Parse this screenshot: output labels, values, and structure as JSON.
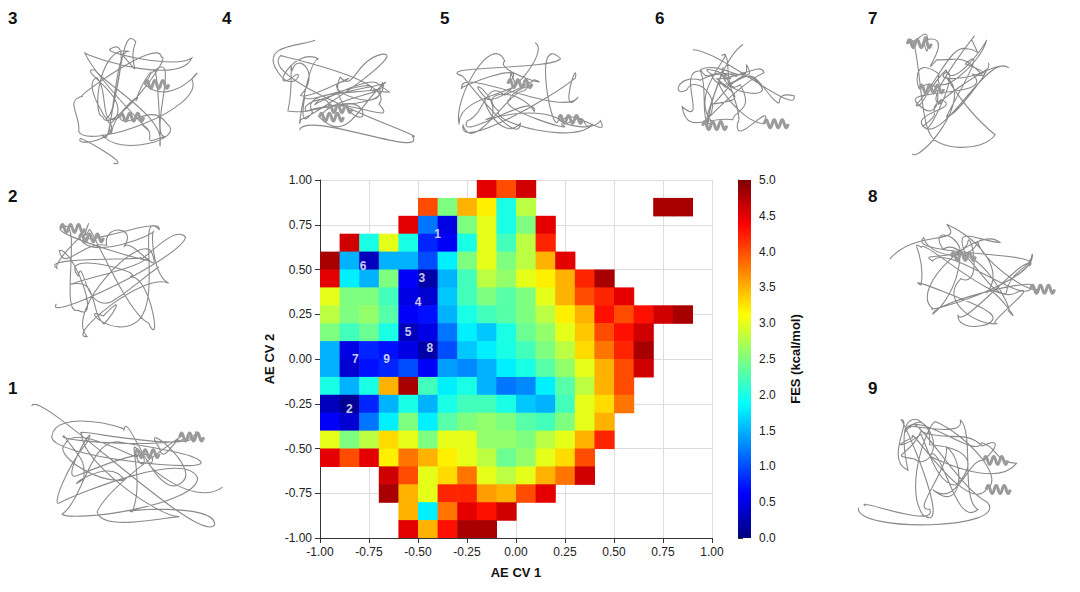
{
  "chart_data": {
    "type": "heatmap",
    "xlabel": "AE CV 1",
    "ylabel": "AE CV 2",
    "xlim": [
      -1,
      1
    ],
    "ylim": [
      -1,
      1
    ],
    "xticks": [
      {
        "value": -1,
        "label": "-1.00"
      },
      {
        "value": -0.75,
        "label": "-0.75"
      },
      {
        "value": -0.5,
        "label": "-0.50"
      },
      {
        "value": -0.25,
        "label": "-0.25"
      },
      {
        "value": 0,
        "label": "0.00"
      },
      {
        "value": 0.25,
        "label": "0.25"
      },
      {
        "value": 0.5,
        "label": "0.50"
      },
      {
        "value": 0.75,
        "label": "0.75"
      },
      {
        "value": 1,
        "label": "1.00"
      }
    ],
    "yticks": [
      {
        "value": -1,
        "label": "-1.00"
      },
      {
        "value": -0.75,
        "label": "-0.75"
      },
      {
        "value": -0.5,
        "label": "-0.50"
      },
      {
        "value": -0.25,
        "label": "-0.25"
      },
      {
        "value": 0,
        "label": "0.00"
      },
      {
        "value": 0.25,
        "label": "0.25"
      },
      {
        "value": 0.5,
        "label": "0.50"
      },
      {
        "value": 0.75,
        "label": "0.75"
      },
      {
        "value": 1,
        "label": "1.00"
      }
    ],
    "grid": true,
    "x": [
      -0.95,
      -0.85,
      -0.75,
      -0.65,
      -0.55,
      -0.45,
      -0.35,
      -0.25,
      -0.15,
      -0.05,
      0.05,
      0.15,
      0.25,
      0.35,
      0.45,
      0.55,
      0.65,
      0.75,
      0.85,
      0.95
    ],
    "y": [
      0.95,
      0.85,
      0.75,
      0.65,
      0.55,
      0.45,
      0.35,
      0.25,
      0.15,
      0.05,
      -0.05,
      -0.15,
      -0.25,
      -0.35,
      -0.45,
      -0.55,
      -0.65,
      -0.75,
      -0.85,
      -0.95
    ],
    "z": [
      [
        null,
        null,
        null,
        null,
        null,
        null,
        null,
        null,
        4.5,
        4.0,
        4.6,
        null,
        null,
        null,
        null,
        null,
        null,
        null,
        null,
        null
      ],
      [
        null,
        null,
        null,
        null,
        null,
        4.0,
        2.5,
        3.5,
        3.2,
        2.0,
        2.8,
        null,
        null,
        null,
        null,
        null,
        null,
        4.8,
        4.8,
        null
      ],
      [
        null,
        null,
        null,
        null,
        4.5,
        1.2,
        0.5,
        2.5,
        3.0,
        2.0,
        2.5,
        4.5,
        null,
        null,
        null,
        null,
        null,
        null,
        null,
        null
      ],
      [
        null,
        4.6,
        2.0,
        3.0,
        2.0,
        0.8,
        0.6,
        2.0,
        3.0,
        2.2,
        2.8,
        4.2,
        null,
        null,
        null,
        null,
        null,
        null,
        null,
        null
      ],
      [
        4.8,
        1.5,
        0.3,
        1.5,
        1.5,
        1.0,
        1.8,
        2.5,
        3.0,
        2.5,
        2.8,
        3.5,
        4.5,
        null,
        null,
        null,
        null,
        null,
        null,
        null
      ],
      [
        4.5,
        1.8,
        1.5,
        2.5,
        0.6,
        0.2,
        1.5,
        2.2,
        2.8,
        2.6,
        3.0,
        3.2,
        3.5,
        4.2,
        4.8,
        null,
        null,
        null,
        null,
        null
      ],
      [
        3.0,
        2.5,
        2.5,
        2.2,
        0.5,
        0.4,
        1.6,
        2.2,
        2.5,
        2.3,
        2.5,
        3.0,
        3.5,
        4.0,
        4.2,
        4.5,
        null,
        null,
        null,
        null
      ],
      [
        2.8,
        2.5,
        2.6,
        2.3,
        0.6,
        0.7,
        1.5,
        2.0,
        2.2,
        2.3,
        2.5,
        2.8,
        3.2,
        3.5,
        4.3,
        4.0,
        4.3,
        4.6,
        4.8,
        null
      ],
      [
        2.5,
        2.2,
        2.4,
        2.0,
        0.3,
        0.5,
        1.2,
        1.8,
        1.6,
        2.0,
        2.4,
        2.6,
        3.0,
        3.4,
        4.0,
        4.3,
        4.6,
        null,
        null,
        null
      ],
      [
        1.5,
        0.5,
        0.8,
        0.7,
        0.5,
        0.2,
        1.0,
        1.6,
        1.8,
        2.0,
        2.2,
        2.5,
        2.8,
        3.3,
        3.8,
        4.2,
        4.8,
        null,
        null,
        null
      ],
      [
        1.5,
        0.4,
        0.7,
        0.8,
        1.0,
        0.6,
        1.4,
        1.3,
        1.5,
        1.8,
        2.0,
        2.3,
        2.6,
        3.0,
        3.5,
        4.0,
        4.6,
        null,
        null,
        null
      ],
      [
        2.0,
        1.5,
        2.0,
        3.5,
        4.8,
        2.2,
        1.8,
        2.0,
        1.5,
        1.2,
        1.3,
        1.8,
        2.3,
        2.8,
        3.5,
        4.0,
        null,
        null,
        null,
        null
      ],
      [
        0.3,
        0.1,
        0.8,
        1.5,
        2.0,
        1.5,
        2.0,
        2.2,
        2.2,
        2.0,
        1.6,
        1.5,
        2.2,
        3.0,
        3.3,
        3.8,
        null,
        null,
        null,
        null
      ],
      [
        0.6,
        0.4,
        1.2,
        1.8,
        2.5,
        1.8,
        2.3,
        2.5,
        2.6,
        2.5,
        2.3,
        2.2,
        2.5,
        3.0,
        3.5,
        null,
        null,
        null,
        null,
        null
      ],
      [
        3.0,
        2.5,
        2.8,
        3.3,
        3.0,
        2.5,
        3.0,
        3.0,
        2.6,
        2.6,
        2.5,
        2.8,
        3.0,
        3.5,
        4.2,
        null,
        null,
        null,
        null,
        null
      ],
      [
        4.5,
        4.0,
        4.5,
        3.2,
        3.8,
        3.5,
        3.2,
        3.0,
        2.8,
        2.4,
        2.6,
        3.0,
        3.3,
        4.0,
        null,
        null,
        null,
        null,
        null,
        null
      ],
      [
        null,
        null,
        null,
        4.6,
        4.0,
        3.0,
        3.3,
        3.8,
        3.0,
        2.8,
        3.0,
        3.5,
        3.8,
        4.6,
        null,
        null,
        null,
        null,
        null,
        null
      ],
      [
        null,
        null,
        null,
        4.8,
        3.5,
        3.0,
        4.2,
        4.2,
        3.6,
        3.5,
        4.0,
        4.5,
        null,
        null,
        null,
        null,
        null,
        null,
        null,
        null
      ],
      [
        null,
        null,
        null,
        null,
        3.5,
        1.8,
        3.8,
        4.5,
        4.3,
        4.6,
        null,
        null,
        null,
        null,
        null,
        null,
        null,
        null,
        null,
        null
      ],
      [
        null,
        null,
        null,
        null,
        4.5,
        3.5,
        4.3,
        4.8,
        4.8,
        null,
        null,
        null,
        null,
        null,
        null,
        null,
        null,
        null,
        null,
        null
      ]
    ],
    "colorbar": {
      "label": "FES (kcal/mol)",
      "lim": [
        0,
        5
      ],
      "ticks": [
        {
          "value": 0,
          "label": "0.0"
        },
        {
          "value": 0.5,
          "label": "0.5"
        },
        {
          "value": 1,
          "label": "1.0"
        },
        {
          "value": 1.5,
          "label": "1.5"
        },
        {
          "value": 2,
          "label": "2.0"
        },
        {
          "value": 2.5,
          "label": "2.5"
        },
        {
          "value": 3,
          "label": "3.0"
        },
        {
          "value": 3.5,
          "label": "3.5"
        },
        {
          "value": 4,
          "label": "4.0"
        },
        {
          "value": 4.5,
          "label": "4.5"
        },
        {
          "value": 5,
          "label": "5.0"
        }
      ]
    },
    "annotations": [
      {
        "text": "1",
        "x": -0.4,
        "y": 0.7
      },
      {
        "text": "6",
        "x": -0.78,
        "y": 0.52
      },
      {
        "text": "3",
        "x": -0.48,
        "y": 0.45
      },
      {
        "text": "4",
        "x": -0.5,
        "y": 0.32
      },
      {
        "text": "5",
        "x": -0.55,
        "y": 0.15
      },
      {
        "text": "8",
        "x": -0.44,
        "y": 0.06
      },
      {
        "text": "7",
        "x": -0.82,
        "y": 0.0
      },
      {
        "text": "9",
        "x": -0.66,
        "y": 0.0
      },
      {
        "text": "2",
        "x": -0.85,
        "y": -0.28
      }
    ],
    "structures": [
      "3",
      "4",
      "5",
      "6",
      "7",
      "2",
      "8",
      "1",
      "9"
    ]
  }
}
